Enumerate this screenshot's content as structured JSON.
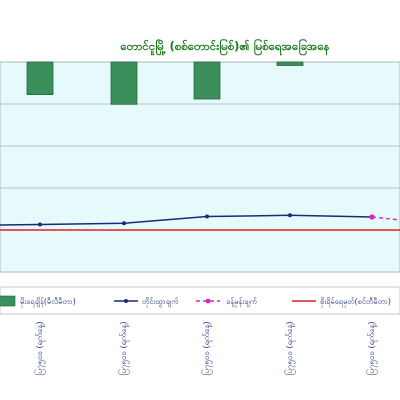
{
  "chart_data": {
    "type": "bar",
    "title": "တောင်ငူမြို့ (စစ်တောင်းမြစ်)၏ မြစ်ရေအခြေအနေ",
    "x": [
      "ပြ၇၅၀၀ (ရက်နေ့)",
      "ပြ၇၅၀၀ (ရက်နေ့)",
      "ပြ၇၅၀၀ (ရက်နေ့)",
      "ပြ၇၅၀၀ (ရက်နေ့)",
      "ပြ၇၅၀၀ (ရက်နေ့)"
    ],
    "series": [
      {
        "name": "မိုးရေချိန်(မီလီမီတာ)",
        "kind": "bar",
        "color": "#3a8f5a",
        "values": [
          37,
          48,
          42,
          4,
          null
        ]
      },
      {
        "name": "တိုင်းထွာချက်",
        "kind": "line",
        "color": "#1a2a7a",
        "values": [
          -38.7,
          -38.4,
          -36.8,
          -36.5,
          -36.9
        ]
      },
      {
        "name": "ခန့်မှန်းချက်",
        "kind": "dashed-line",
        "color": "#e020c8",
        "values": [
          null,
          null,
          null,
          null,
          -36.9
        ]
      },
      {
        "name": "စိုးရိမ်ရေမှတ်(စင်တီမီတာ)",
        "kind": "hline",
        "color": "#e02020",
        "values": [
          -40,
          -40,
          -40,
          -40,
          -40
        ]
      }
    ],
    "ylim": [
      -50,
      0
    ],
    "grid": true,
    "legend": "bottom"
  }
}
